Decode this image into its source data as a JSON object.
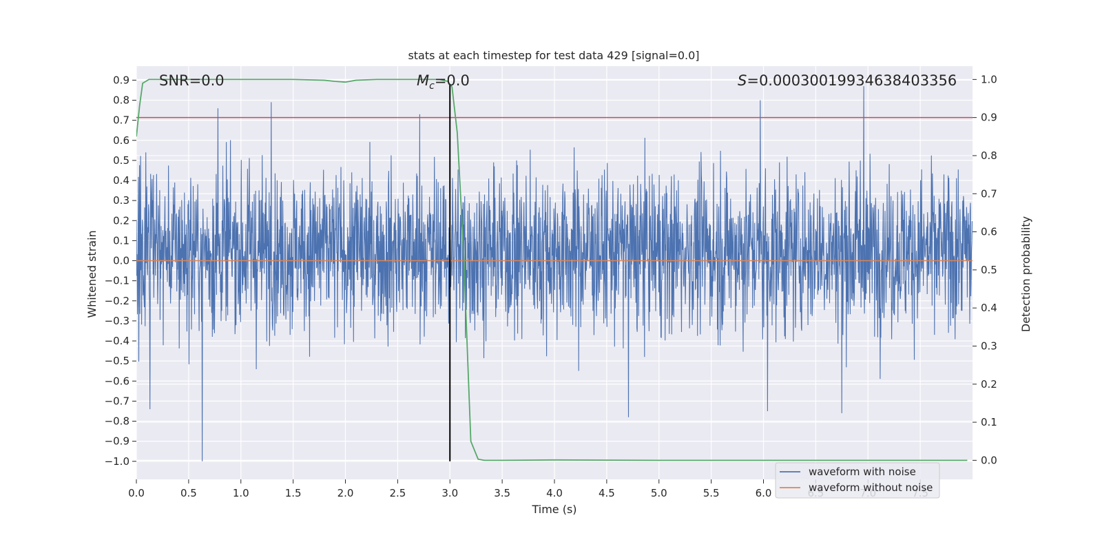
{
  "chart_data": {
    "type": "line",
    "title": "stats at each timestep for test data 429 [signal=0.0]",
    "xlabel": "Time (s)",
    "ylabel": "Whitened strain",
    "y2label": "Detection probability",
    "xlim": [
      0.0,
      8.0
    ],
    "ylim": [
      -1.09,
      0.97
    ],
    "y2lim": [
      -0.05,
      1.035
    ],
    "x_ticks": [
      "0.0",
      "0.5",
      "1.0",
      "1.5",
      "2.0",
      "2.5",
      "3.0",
      "3.5",
      "4.0",
      "4.5",
      "5.0",
      "5.5",
      "6.0",
      "6.5",
      "7.0",
      "7.5"
    ],
    "y_ticks": [
      "0.9",
      "0.8",
      "0.7",
      "0.6",
      "0.5",
      "0.4",
      "0.3",
      "0.2",
      "0.1",
      "0.0",
      "−0.1",
      "−0.2",
      "−0.3",
      "−0.4",
      "−0.5",
      "−0.6",
      "−0.7",
      "−0.8",
      "−0.9",
      "−1.0"
    ],
    "y2_ticks": [
      "1.0",
      "0.9",
      "0.8",
      "0.7",
      "0.6",
      "0.5",
      "0.4",
      "0.3",
      "0.2",
      "0.1",
      "0.0"
    ],
    "grid": true,
    "legend_position": "lower-right",
    "annotations": {
      "snr_text": "SNR=0.0",
      "mc_var": "M",
      "mc_sub": "c",
      "mc_value": "=0.0",
      "s_var": "S",
      "s_value": "=0.00030019934638403356"
    },
    "series": [
      {
        "name": "waveform with noise",
        "color": "#4c72b0",
        "axis": "left",
        "kind": "noise",
        "x_range": [
          0.0,
          8.0
        ],
        "typical_range": [
          -0.35,
          0.45
        ],
        "min": -1.0,
        "max": 0.87,
        "notable_spikes": [
          [
            0.63,
            -1.0
          ],
          [
            0.13,
            -0.74
          ],
          [
            0.78,
            0.76
          ],
          [
            1.29,
            0.79
          ],
          [
            2.71,
            0.73
          ],
          [
            5.97,
            0.8
          ],
          [
            6.96,
            0.87
          ],
          [
            4.71,
            -0.78
          ],
          [
            6.75,
            -0.76
          ],
          [
            6.04,
            -0.75
          ]
        ]
      },
      {
        "name": "waveform without noise",
        "color": "#dd8452",
        "axis": "left",
        "x": [
          0.0,
          8.0
        ],
        "y": [
          0.0,
          0.0
        ]
      },
      {
        "name": "",
        "color": "#55a868",
        "axis": "right",
        "x": [
          0.0,
          0.03,
          0.06,
          0.12,
          0.5,
          1.0,
          1.5,
          1.8,
          1.9,
          2.0,
          2.1,
          2.3,
          2.6,
          2.9,
          2.98,
          3.02,
          3.07,
          3.13,
          3.2,
          3.27,
          3.33,
          3.5,
          4.0,
          5.0,
          6.0,
          7.0,
          7.95
        ],
        "y": [
          0.85,
          0.93,
          0.99,
          1.0,
          1.0,
          1.0,
          1.0,
          0.998,
          0.995,
          0.993,
          0.998,
          1.0,
          1.0,
          1.0,
          0.995,
          0.98,
          0.86,
          0.55,
          0.05,
          0.003,
          0.0,
          0.0,
          0.001,
          0.0,
          0.0,
          0.0,
          0.0
        ]
      },
      {
        "name": "",
        "color": "#c44e52",
        "axis": "right",
        "x": [
          0.0,
          8.0
        ],
        "y": [
          0.9,
          0.9
        ]
      }
    ],
    "vertical_line": {
      "x": 3.0,
      "color": "#000000",
      "y_from": -1.0,
      "y_to": 0.88
    }
  }
}
